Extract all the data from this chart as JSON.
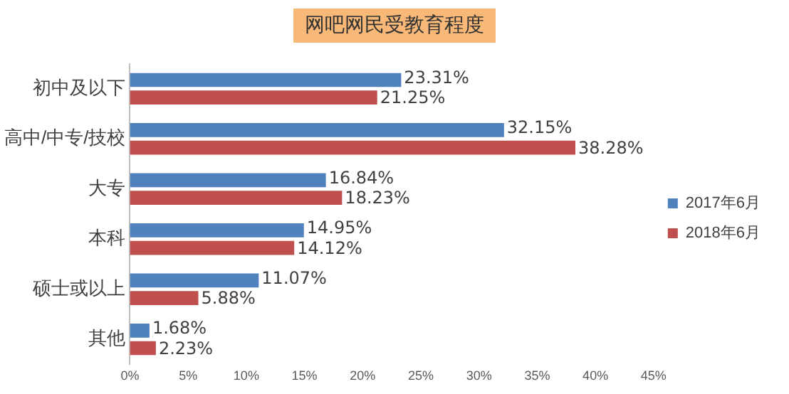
{
  "chart_data": {
    "type": "bar",
    "orientation": "horizontal",
    "title": "网吧网民受教育程度",
    "categories": [
      "初中及以下",
      "高中/中专/技校",
      "大专",
      "本科",
      "硕士或以上",
      "其他"
    ],
    "series": [
      {
        "name": "2017年6月",
        "color": "#4f81bd",
        "values": [
          23.31,
          32.15,
          16.84,
          14.95,
          11.07,
          1.68
        ],
        "value_labels": [
          "23.31%",
          "32.15%",
          "16.84%",
          "14.95%",
          "11.07%",
          "1.68%"
        ]
      },
      {
        "name": "2018年6月",
        "color": "#c0504d",
        "values": [
          21.25,
          38.28,
          18.23,
          14.12,
          5.88,
          2.23
        ],
        "value_labels": [
          "21.25%",
          "38.28%",
          "18.23%",
          "14.12%",
          "5.88%",
          "2.23%"
        ]
      }
    ],
    "xlim": [
      0,
      45
    ],
    "xticks": [
      {
        "value": 0,
        "label": "0%"
      },
      {
        "value": 5,
        "label": "5%"
      },
      {
        "value": 10,
        "label": "10%"
      },
      {
        "value": 15,
        "label": "15%"
      },
      {
        "value": 20,
        "label": "20%"
      },
      {
        "value": 25,
        "label": "25%"
      },
      {
        "value": 30,
        "label": "30%"
      },
      {
        "value": 35,
        "label": "35%"
      },
      {
        "value": 40,
        "label": "40%"
      },
      {
        "value": 45,
        "label": "45%"
      }
    ],
    "grid": false,
    "legend": "right"
  }
}
